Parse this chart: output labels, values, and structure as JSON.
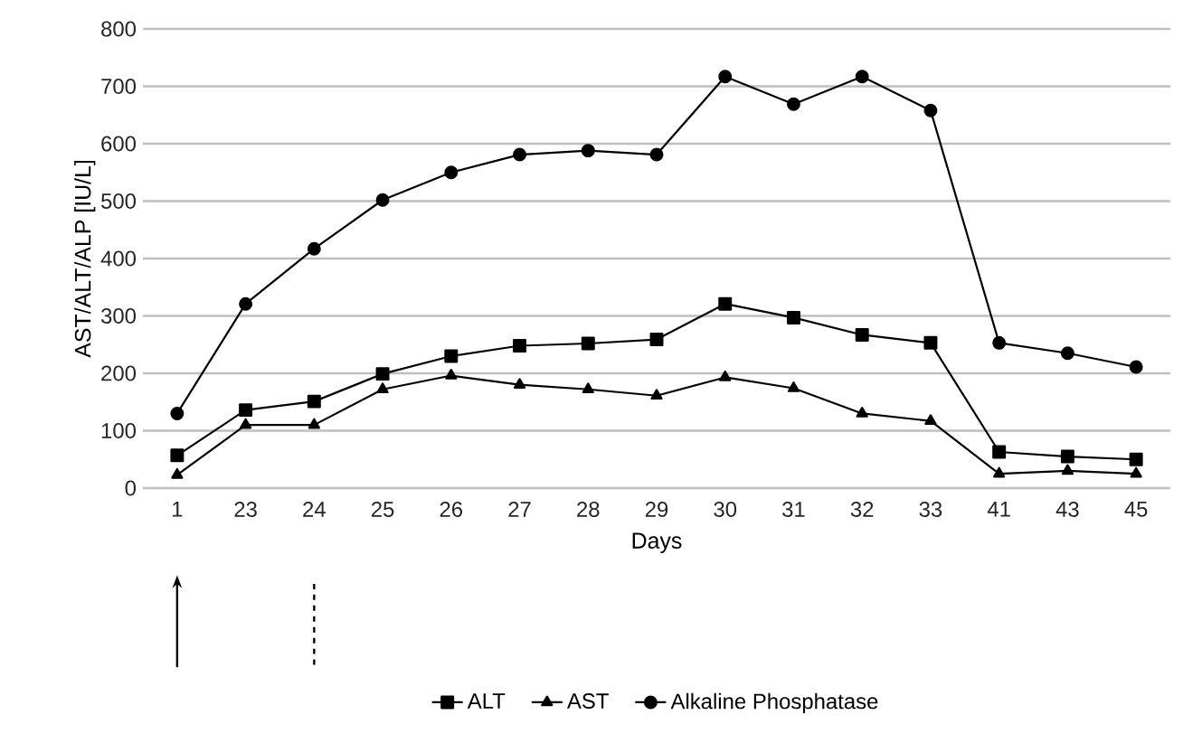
{
  "chart_data": {
    "type": "line",
    "xlabel": "Days",
    "ylabel": "AST/ALT/ALP [IU/L]",
    "categories": [
      "1",
      "23",
      "24",
      "25",
      "26",
      "27",
      "28",
      "29",
      "30",
      "31",
      "32",
      "33",
      "41",
      "43",
      "45"
    ],
    "series": [
      {
        "name": "ALT",
        "color": "#000000",
        "marker": "square",
        "values": [
          57,
          136,
          151,
          199,
          230,
          248,
          252,
          259,
          321,
          297,
          267,
          253,
          63,
          55,
          50
        ]
      },
      {
        "name": "AST",
        "color": "#000000",
        "marker": "triangle",
        "values": [
          23,
          110,
          110,
          172,
          196,
          180,
          172,
          161,
          193,
          174,
          130,
          117,
          25,
          30,
          25
        ]
      },
      {
        "name": "Alkaline Phosphatase",
        "color": "#000000",
        "marker": "circle",
        "values": [
          130,
          321,
          417,
          502,
          550,
          581,
          588,
          581,
          717,
          669,
          717,
          658,
          253,
          235,
          211
        ]
      }
    ],
    "ylim": [
      0,
      800
    ],
    "yticks": [
      0,
      100,
      200,
      300,
      400,
      500,
      600,
      700,
      800
    ],
    "grid": "y",
    "legend": "bottom",
    "line_style": "solid"
  }
}
